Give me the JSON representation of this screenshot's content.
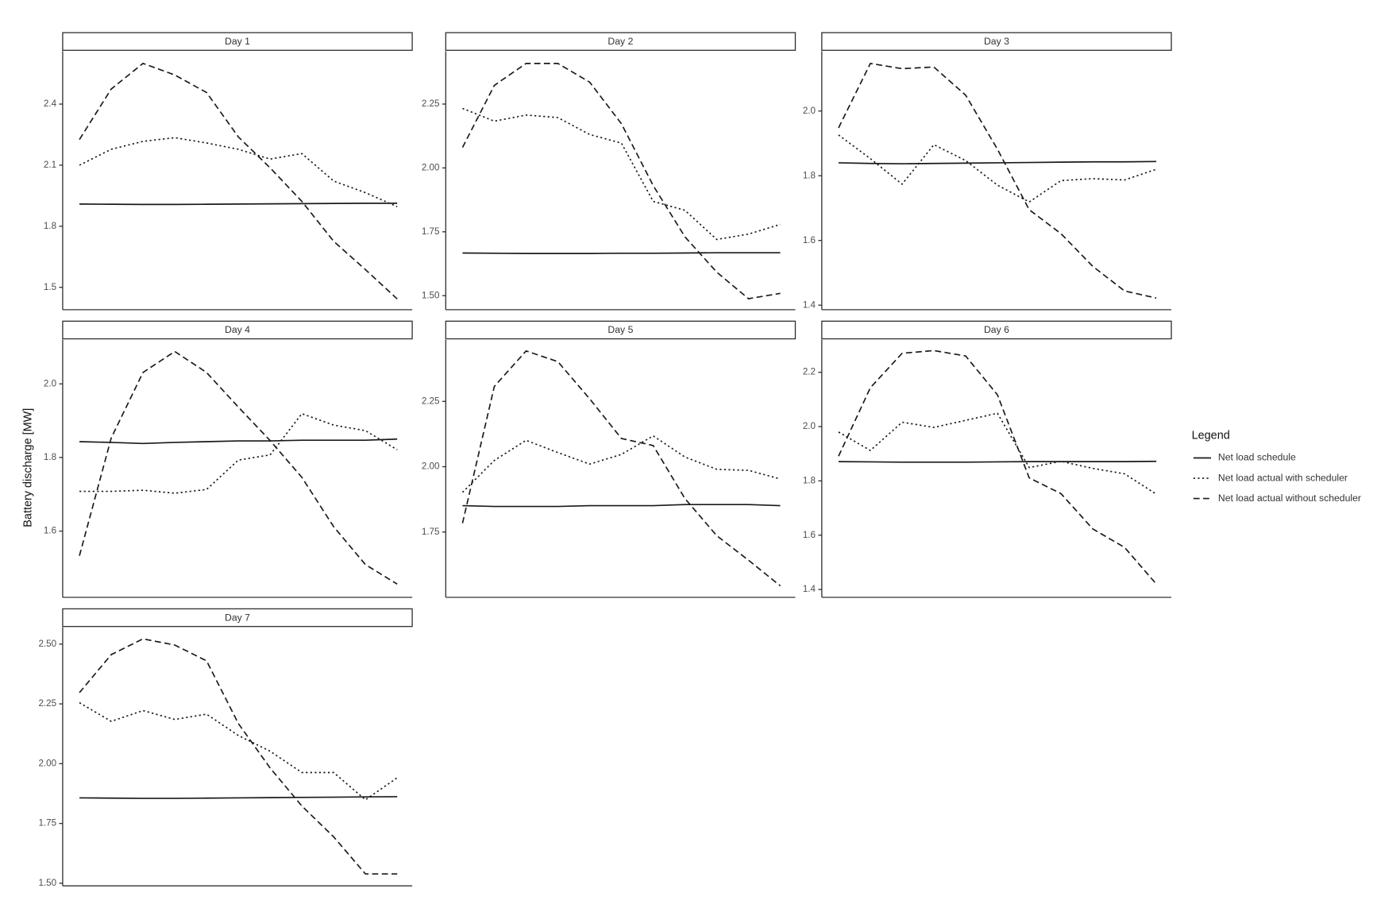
{
  "ylabel": "Battery discharge [MW]",
  "legend_title": "Legend",
  "chart_data": [
    {
      "type": "line",
      "title": "Day 1",
      "categories": [
        null,
        null,
        null,
        null,
        null,
        null,
        null,
        null,
        null,
        null,
        null
      ],
      "ylim": [
        1.39,
        2.66
      ],
      "yticks": [
        1.5,
        1.8,
        2.1,
        2.4
      ],
      "series": [
        {
          "name": "Net load schedule",
          "color": "#1a1a1a",
          "dash": "solid",
          "values": [
            1.909,
            1.908,
            1.907,
            1.907,
            1.908,
            1.909,
            1.91,
            1.911,
            1.912,
            1.913,
            1.913
          ]
        },
        {
          "name": "Net load actual with scheduler",
          "color": "#1a1a1a",
          "dash": "dotted",
          "values": [
            2.1,
            2.178,
            2.217,
            2.235,
            2.209,
            2.178,
            2.13,
            2.157,
            2.022,
            1.965,
            1.896
          ]
        },
        {
          "name": "Net load actual without scheduler",
          "color": "#1a1a1a",
          "dash": "dashed",
          "values": [
            2.226,
            2.474,
            2.6,
            2.543,
            2.457,
            2.239,
            2.087,
            1.922,
            1.726,
            1.587,
            1.443
          ]
        }
      ]
    },
    {
      "type": "line",
      "title": "Day 2",
      "categories": [
        null,
        null,
        null,
        null,
        null,
        null,
        null,
        null,
        null,
        null,
        null
      ],
      "ylim": [
        1.445,
        2.457
      ],
      "yticks": [
        {
          "value": 1.5,
          "label": "1.50"
        },
        1.75,
        {
          "value": 2,
          "label": "2.00"
        },
        2.25
      ],
      "series": [
        {
          "name": "Net load schedule",
          "color": "#1a1a1a",
          "dash": "solid",
          "values": [
            1.667,
            1.666,
            1.665,
            1.665,
            1.665,
            1.666,
            1.666,
            1.667,
            1.668,
            1.668,
            1.668
          ]
        },
        {
          "name": "Net load actual with scheduler",
          "color": "#1a1a1a",
          "dash": "dotted",
          "values": [
            2.233,
            2.183,
            2.207,
            2.197,
            2.131,
            2.097,
            1.869,
            1.834,
            1.72,
            1.741,
            1.779
          ]
        },
        {
          "name": "Net load actual without scheduler",
          "color": "#1a1a1a",
          "dash": "dashed",
          "values": [
            2.08,
            2.323,
            2.409,
            2.409,
            2.336,
            2.173,
            1.931,
            1.73,
            1.592,
            1.488,
            1.509
          ]
        }
      ]
    },
    {
      "type": "line",
      "title": "Day 3",
      "categories": [
        null,
        null,
        null,
        null,
        null,
        null,
        null,
        null,
        null,
        null,
        null
      ],
      "ylim": [
        1.386,
        2.185
      ],
      "yticks": [
        1.4,
        1.6,
        1.8,
        {
          "value": 2,
          "label": "2.0"
        }
      ],
      "series": [
        {
          "name": "Net load schedule",
          "color": "#1a1a1a",
          "dash": "solid",
          "values": [
            1.84,
            1.838,
            1.837,
            1.838,
            1.839,
            1.84,
            1.841,
            1.842,
            1.843,
            1.843,
            1.844
          ]
        },
        {
          "name": "Net load actual with scheduler",
          "color": "#1a1a1a",
          "dash": "dotted",
          "values": [
            1.926,
            1.853,
            1.774,
            1.896,
            1.847,
            1.771,
            1.719,
            1.785,
            1.791,
            1.787,
            1.82
          ]
        },
        {
          "name": "Net load actual without scheduler",
          "color": "#1a1a1a",
          "dash": "dashed",
          "values": [
            1.948,
            2.147,
            2.131,
            2.136,
            2.049,
            1.882,
            1.695,
            1.621,
            1.52,
            1.444,
            1.422
          ]
        }
      ]
    },
    {
      "type": "line",
      "title": "Day 4",
      "categories": [
        null,
        null,
        null,
        null,
        null,
        null,
        null,
        null,
        null,
        null,
        null
      ],
      "ylim": [
        1.42,
        2.12
      ],
      "yticks": [
        1.6,
        1.8,
        {
          "value": 2,
          "label": "2.0"
        }
      ],
      "series": [
        {
          "name": "Net load schedule",
          "color": "#1a1a1a",
          "dash": "solid",
          "values": [
            1.843,
            1.841,
            1.838,
            1.841,
            1.843,
            1.845,
            1.845,
            1.847,
            1.847,
            1.847,
            1.85
          ]
        },
        {
          "name": "Net load actual with scheduler",
          "color": "#1a1a1a",
          "dash": "dotted",
          "values": [
            1.708,
            1.708,
            1.711,
            1.703,
            1.713,
            1.793,
            1.807,
            1.919,
            1.888,
            1.873,
            1.821
          ]
        },
        {
          "name": "Net load actual without scheduler",
          "color": "#1a1a1a",
          "dash": "dashed",
          "values": [
            1.533,
            1.853,
            2.031,
            2.088,
            2.031,
            1.937,
            1.846,
            1.746,
            1.612,
            1.509,
            1.456
          ]
        }
      ]
    },
    {
      "type": "line",
      "title": "Day 5",
      "categories": [
        null,
        null,
        null,
        null,
        null,
        null,
        null,
        null,
        null,
        null,
        null
      ],
      "ylim": [
        1.5,
        2.486
      ],
      "yticks": [
        1.75,
        {
          "value": 2,
          "label": "2.00"
        },
        2.25
      ],
      "series": [
        {
          "name": "Net load schedule",
          "color": "#1a1a1a",
          "dash": "solid",
          "values": [
            1.851,
            1.848,
            1.848,
            1.848,
            1.851,
            1.851,
            1.851,
            1.855,
            1.855,
            1.855,
            1.851
          ]
        },
        {
          "name": "Net load actual with scheduler",
          "color": "#1a1a1a",
          "dash": "dotted",
          "values": [
            1.902,
            2.024,
            2.101,
            2.054,
            2.01,
            2.047,
            2.118,
            2.037,
            1.99,
            1.986,
            1.953
          ]
        },
        {
          "name": "Net load actual without scheduler",
          "color": "#1a1a1a",
          "dash": "dashed",
          "values": [
            1.784,
            2.307,
            2.443,
            2.402,
            2.26,
            2.108,
            2.081,
            1.878,
            1.736,
            1.642,
            1.544
          ]
        }
      ]
    },
    {
      "type": "line",
      "title": "Day 6",
      "categories": [
        null,
        null,
        null,
        null,
        null,
        null,
        null,
        null,
        null,
        null,
        null
      ],
      "ylim": [
        1.371,
        2.32
      ],
      "yticks": [
        1.4,
        1.6,
        1.8,
        {
          "value": 2,
          "label": "2.0"
        },
        2.2
      ],
      "series": [
        {
          "name": "Net load schedule",
          "color": "#1a1a1a",
          "dash": "solid",
          "values": [
            1.871,
            1.87,
            1.869,
            1.869,
            1.869,
            1.87,
            1.871,
            1.871,
            1.871,
            1.871,
            1.872
          ]
        },
        {
          "name": "Net load actual with scheduler",
          "color": "#1a1a1a",
          "dash": "dotted",
          "values": [
            1.98,
            1.912,
            2.016,
            1.997,
            2.023,
            2.049,
            1.849,
            1.872,
            1.846,
            1.826,
            1.751
          ]
        },
        {
          "name": "Net load actual without scheduler",
          "color": "#1a1a1a",
          "dash": "dashed",
          "values": [
            1.891,
            2.143,
            2.27,
            2.28,
            2.26,
            2.117,
            1.811,
            1.753,
            1.623,
            1.555,
            1.42
          ]
        }
      ]
    },
    {
      "type": "line",
      "title": "Day 7",
      "categories": [
        null,
        null,
        null,
        null,
        null,
        null,
        null,
        null,
        null,
        null,
        null
      ],
      "ylim": [
        1.489,
        2.57
      ],
      "yticks": [
        {
          "value": 1.5,
          "label": "1.50"
        },
        1.75,
        {
          "value": 2,
          "label": "2.00"
        },
        2.25,
        {
          "value": 2.5,
          "label": "2.50"
        }
      ],
      "series": [
        {
          "name": "Net load schedule",
          "color": "#1a1a1a",
          "dash": "solid",
          "values": [
            1.857,
            1.856,
            1.855,
            1.855,
            1.856,
            1.857,
            1.858,
            1.859,
            1.86,
            1.861,
            1.862
          ]
        },
        {
          "name": "Net load actual with scheduler",
          "color": "#1a1a1a",
          "dash": "dotted",
          "values": [
            2.255,
            2.177,
            2.222,
            2.185,
            2.207,
            2.118,
            2.052,
            1.963,
            1.963,
            1.849,
            1.941
          ]
        },
        {
          "name": "Net load actual without scheduler",
          "color": "#1a1a1a",
          "dash": "dashed",
          "values": [
            2.297,
            2.456,
            2.522,
            2.496,
            2.43,
            2.168,
            1.982,
            1.823,
            1.694,
            1.539,
            1.539
          ]
        }
      ]
    }
  ]
}
